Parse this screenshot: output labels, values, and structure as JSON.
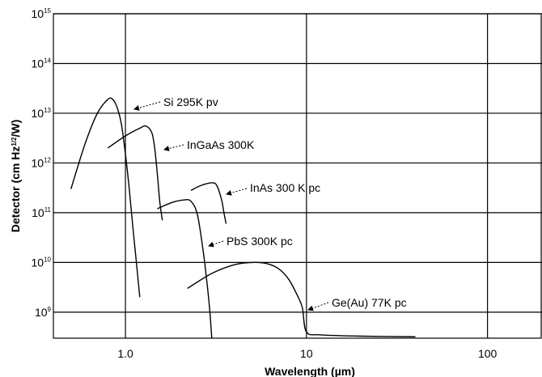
{
  "chart_data": {
    "type": "line",
    "xlabel": "Wavelength (µm)",
    "ylabel": "Detector (cm Hz¹ᐟ²/W)",
    "ylabel_parts": {
      "pre": "Detector (cm Hz",
      "sup": "1/2",
      "post": "/W)"
    },
    "x_scale": "log",
    "y_scale": "log",
    "xlim": [
      0.4,
      200
    ],
    "ylim": [
      300000000.0,
      1000000000000000.0
    ],
    "grid": true,
    "x_ticks": [
      {
        "value": 1,
        "label": "1.0"
      },
      {
        "value": 10,
        "label": "10"
      },
      {
        "value": 100,
        "label": "100"
      }
    ],
    "y_ticks": [
      {
        "value": 1000000000.0,
        "base": "10",
        "exp": "9"
      },
      {
        "value": 10000000000.0,
        "base": "10",
        "exp": "10"
      },
      {
        "value": 100000000000.0,
        "base": "10",
        "exp": "11"
      },
      {
        "value": 1000000000000.0,
        "base": "10",
        "exp": "12"
      },
      {
        "value": 10000000000000.0,
        "base": "10",
        "exp": "13"
      },
      {
        "value": 100000000000000.0,
        "base": "10",
        "exp": "14"
      },
      {
        "value": 1000000000000000.0,
        "base": "10",
        "exp": "15"
      }
    ],
    "series": [
      {
        "name": "Si 295K pv",
        "x": [
          0.5,
          0.6,
          0.7,
          0.8,
          0.85,
          0.9,
          0.95,
          1.0,
          1.05,
          1.1,
          1.15,
          1.2
        ],
        "y": [
          300000000000.0,
          2500000000000.0,
          10000000000000.0,
          19000000000000.0,
          19000000000000.0,
          13000000000000.0,
          6000000000000.0,
          1500000000000.0,
          300000000000.0,
          50000000000.0,
          10000000000.0,
          2000000000.0
        ]
      },
      {
        "name": "InGaAs 300K",
        "x": [
          0.8,
          1.0,
          1.2,
          1.3,
          1.4,
          1.45,
          1.5,
          1.55,
          1.6
        ],
        "y": [
          2000000000000.0,
          3500000000000.0,
          5000000000000.0,
          5500000000000.0,
          4000000000000.0,
          2000000000000.0,
          600000000000.0,
          160000000000.0,
          70000000000.0
        ]
      },
      {
        "name": "InAs 300 K pc",
        "x": [
          2.3,
          2.6,
          3.0,
          3.2,
          3.4,
          3.5,
          3.6
        ],
        "y": [
          280000000000.0,
          350000000000.0,
          400000000000.0,
          350000000000.0,
          180000000000.0,
          100000000000.0,
          60000000000.0
        ]
      },
      {
        "name": "PbS 300K pc",
        "x": [
          1.5,
          1.8,
          2.1,
          2.3,
          2.5,
          2.7,
          2.8,
          2.9,
          3.0
        ],
        "y": [
          120000000000.0,
          160000000000.0,
          180000000000.0,
          170000000000.0,
          90000000000.0,
          15000000000.0,
          5000000000.0,
          1500000000.0,
          300000000.0
        ]
      },
      {
        "name": "Ge(Au) 77K pc",
        "x": [
          2.2,
          3.0,
          4.0,
          5.0,
          6.0,
          7.0,
          8.0,
          9.0,
          9.5,
          10.0,
          12.0,
          20.0,
          40.0
        ],
        "y": [
          3000000000.0,
          6000000000.0,
          9000000000.0,
          10000000000.0,
          9500000000.0,
          7500000000.0,
          4500000000.0,
          2000000000.0,
          1200000000.0,
          400000000.0,
          350000000.0,
          330000000.0,
          320000000.0
        ]
      }
    ],
    "annotations": [
      {
        "series": 0,
        "text": "Si 295K pv"
      },
      {
        "series": 1,
        "text": "InGaAs 300K"
      },
      {
        "series": 2,
        "text": "InAs 300 K pc"
      },
      {
        "series": 3,
        "text": "PbS 300K pc"
      },
      {
        "series": 4,
        "text": "Ge(Au) 77K pc"
      }
    ]
  }
}
